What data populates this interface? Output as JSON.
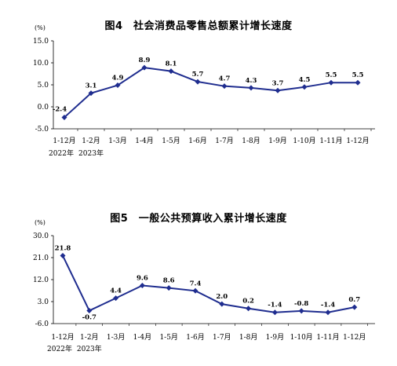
{
  "chart_data": [
    {
      "type": "line",
      "title": "图4　社会消费品零售总额累计增长速度",
      "unit_label": "(%)",
      "categories": [
        "1-12月",
        "1-2月",
        "1-3月",
        "1-4月",
        "1-5月",
        "1-6月",
        "1-7月",
        "1-8月",
        "1-9月",
        "1-10月",
        "1-11月",
        "1-12月"
      ],
      "year_labels": [
        "2022年",
        "2023年"
      ],
      "values": [
        -2.4,
        3.1,
        4.9,
        8.9,
        8.1,
        5.7,
        4.7,
        4.3,
        3.7,
        4.5,
        5.5,
        5.5
      ],
      "data_labels": [
        "-2.4",
        "3.1",
        "4.9",
        "8.9",
        "8.1",
        "5.7",
        "4.7",
        "4.3",
        "3.7",
        "4.5",
        "5.5",
        "5.5"
      ],
      "y_ticks": [
        "15.0",
        "10.0",
        "5.0",
        "0.0",
        "-5.0"
      ],
      "ylim": [
        -5,
        15
      ],
      "line_color": "#1f2d8f",
      "grid": false
    },
    {
      "type": "line",
      "title": "图5　一般公共预算收入累计增长速度",
      "unit_label": "(%)",
      "categories": [
        "1-12月",
        "1-2月",
        "1-3月",
        "1-4月",
        "1-5月",
        "1-6月",
        "1-7月",
        "1-8月",
        "1-9月",
        "1-10月",
        "1-11月",
        "1-12月"
      ],
      "year_labels": [
        "2022年",
        "2023年"
      ],
      "values": [
        21.8,
        -0.7,
        4.4,
        9.6,
        8.6,
        7.4,
        2.0,
        0.2,
        -1.4,
        -0.8,
        -1.4,
        0.7
      ],
      "data_labels": [
        "21.8",
        "-0.7",
        "4.4",
        "9.6",
        "8.6",
        "7.4",
        "2.0",
        "0.2",
        "-1.4",
        "-0.8",
        "-1.4",
        "0.7"
      ],
      "y_ticks": [
        "30.0",
        "21.0",
        "12.0",
        "3.0",
        "-6.0"
      ],
      "ylim": [
        -6,
        30
      ],
      "line_color": "#1f2d8f",
      "grid": false
    }
  ]
}
